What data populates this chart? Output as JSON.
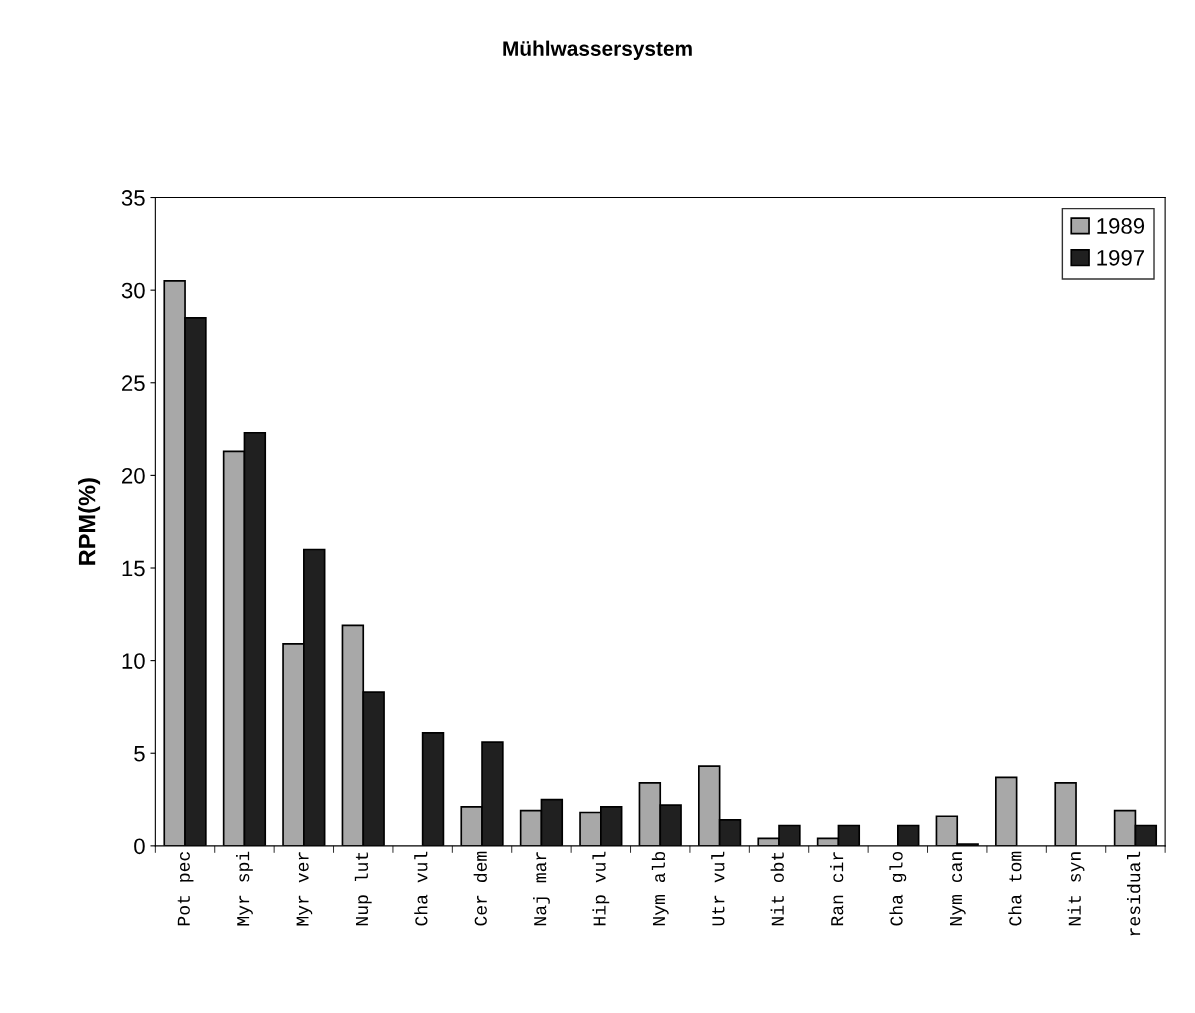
{
  "chart_data": {
    "type": "bar",
    "title": "Mühlwassersystem",
    "ylabel": "RPM(%)",
    "categories": [
      "Pot pec",
      "Myr spi",
      "Myr ver",
      "Nup lut",
      "Cha vul",
      "Cer dem",
      "Naj mar",
      "Hip vul",
      "Nym alb",
      "Utr vul",
      "Nit obt",
      "Ran cir",
      "Cha glo",
      "Nym can",
      "Cha tom",
      "Nit syn",
      "residual"
    ],
    "series": [
      {
        "name": "1989",
        "color": "#a8a8a8",
        "values": [
          30.5,
          21.3,
          10.9,
          11.9,
          null,
          2.1,
          1.9,
          1.8,
          3.4,
          4.3,
          0.4,
          0.4,
          null,
          1.6,
          3.7,
          3.4,
          1.9
        ]
      },
      {
        "name": "1997",
        "color": "#202020",
        "values": [
          28.5,
          22.3,
          16.0,
          8.3,
          6.1,
          5.6,
          2.5,
          2.1,
          2.2,
          1.4,
          1.1,
          1.1,
          1.1,
          0.1,
          null,
          null,
          1.1
        ]
      }
    ],
    "ylim": [
      0,
      35
    ],
    "yticks": [
      0,
      5,
      10,
      15,
      20,
      25,
      30,
      35
    ],
    "grid": false,
    "legend": "top right"
  }
}
